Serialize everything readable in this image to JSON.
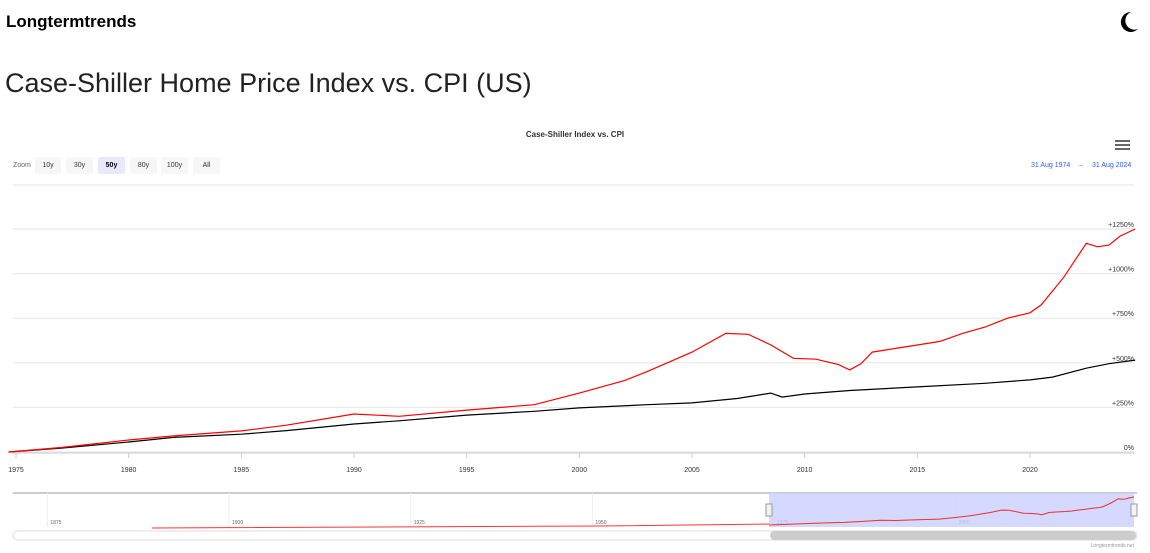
{
  "brand": "Longtermtrends",
  "page_title": "Case-Shiller Home Price Index vs. CPI (US)",
  "zoom": {
    "label": "Zoom",
    "buttons": [
      "10y",
      "30y",
      "50y",
      "80y",
      "100y",
      "All"
    ],
    "selected": "50y"
  },
  "range": {
    "from": "31 Aug 1974",
    "arrow": "→",
    "to": "31 Aug 2024"
  },
  "credits": "Longtermtrends.net",
  "navigator": {
    "labels": [
      "1875",
      "1900",
      "1925",
      "1950",
      "1975",
      "2000"
    ]
  },
  "colors": {
    "case_shiller": "#ff0000",
    "cpi": "#000000",
    "navigator_mask": "#ccd0ff"
  },
  "chart_data": {
    "type": "line",
    "title": "Case-Shiller Index vs. CPI",
    "xlabel": "",
    "ylabel": "",
    "xlim": [
      1974.67,
      2024.67
    ],
    "ylim": [
      0,
      1250
    ],
    "x_ticks": [
      "1975",
      "1980",
      "1985",
      "1990",
      "1995",
      "2000",
      "2005",
      "2010",
      "2015",
      "2020"
    ],
    "y_ticks": [
      "0%",
      "+250%",
      "+500%",
      "+750%",
      "+1000%",
      "+1250%"
    ],
    "y_tick_values": [
      0,
      250,
      500,
      750,
      1000,
      1250
    ],
    "grid": true,
    "series": [
      {
        "name": "Case-Shiller Index",
        "color": "#ff0000",
        "x": [
          1974.67,
          1977,
          1980,
          1982,
          1985,
          1987,
          1990,
          1992,
          1995,
          1998,
          2000,
          2002,
          2003,
          2005,
          2006.5,
          2007.5,
          2008.5,
          2009.5,
          2010.5,
          2011.5,
          2012,
          2012.5,
          2013,
          2014,
          2015,
          2016,
          2017,
          2018,
          2019,
          2020,
          2020.5,
          2021.5,
          2022.5,
          2023,
          2023.5,
          2024,
          2024.67
        ],
        "y": [
          0,
          25,
          67,
          90,
          118,
          150,
          213,
          200,
          235,
          265,
          330,
          400,
          450,
          560,
          665,
          660,
          600,
          525,
          520,
          490,
          460,
          495,
          560,
          580,
          600,
          620,
          665,
          700,
          750,
          780,
          825,
          980,
          1170,
          1150,
          1160,
          1210,
          1250
        ]
      },
      {
        "name": "CPI",
        "color": "#000000",
        "x": [
          1974.67,
          1977,
          1980,
          1982,
          1985,
          1987,
          1990,
          1992,
          1995,
          1998,
          2000,
          2003,
          2005,
          2007,
          2008.5,
          2009,
          2010,
          2012,
          2015,
          2018,
          2020,
          2021,
          2022.5,
          2023.5,
          2024.67
        ],
        "y": [
          0,
          22,
          56,
          82,
          100,
          120,
          157,
          175,
          207,
          228,
          247,
          265,
          275,
          300,
          330,
          308,
          325,
          345,
          365,
          385,
          404,
          420,
          470,
          495,
          515
        ]
      }
    ]
  }
}
